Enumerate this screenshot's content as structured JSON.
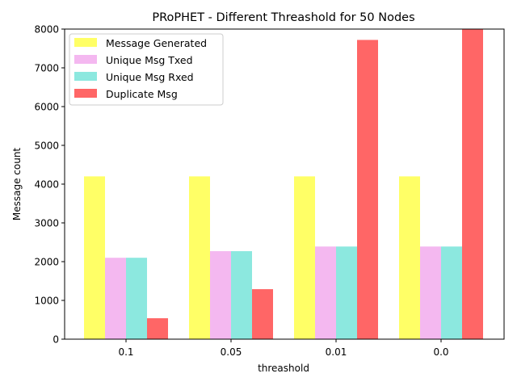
{
  "chart_data": {
    "type": "bar",
    "title": "PRoPHET - Different Threashold for 50 Nodes",
    "xlabel": "threashold",
    "ylabel": "Message count",
    "categories": [
      "0.1",
      "0.05",
      "0.01",
      "0.0"
    ],
    "ylim": [
      0,
      8000
    ],
    "yticks": [
      0,
      1000,
      2000,
      3000,
      4000,
      5000,
      6000,
      7000,
      8000
    ],
    "legend_position": "top-left",
    "series": [
      {
        "name": "Message Generated",
        "color": "#ffff66",
        "values": [
          4200,
          4200,
          4200,
          4200
        ]
      },
      {
        "name": "Unique Msg Txed",
        "color": "#f4b8f0",
        "values": [
          2100,
          2270,
          2390,
          2390
        ]
      },
      {
        "name": "Unique Msg Rxed",
        "color": "#8ce8df",
        "values": [
          2100,
          2270,
          2390,
          2390
        ]
      },
      {
        "name": "Duplicate Msg",
        "color": "#ff6666",
        "values": [
          540,
          1290,
          7720,
          8000
        ]
      }
    ]
  }
}
